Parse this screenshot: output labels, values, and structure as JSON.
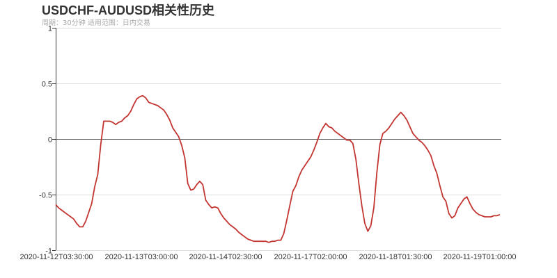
{
  "header": {
    "title": "USDCHF-AUDUSD相关性历史",
    "subtitle": "周期：30分钟 适用范围：日内交易"
  },
  "style": {
    "line_color": "#c23531",
    "grid_color": "#dddddd",
    "axis_color": "#333333",
    "zero_line_color": "#666666"
  },
  "chart_data": {
    "type": "line",
    "title": "USDCHF-AUDUSD相关性历史",
    "subtitle": "周期：30分钟 适用范围：日内交易",
    "xlabel": "",
    "ylabel": "",
    "ylim": [
      -1,
      1
    ],
    "yticks": [
      "1",
      "0.5",
      "0",
      "-0.5",
      "-1"
    ],
    "xticks": [
      "2020-11-12T03:30:00",
      "2020-11-13T03:00:00",
      "2020-11-14T02:30:00",
      "2020-11-17T02:00:00",
      "2020-11-18T01:30:00",
      "2020-11-19T01:00:00"
    ],
    "grid": true,
    "legend": null,
    "series": [
      {
        "name": "USDCHF-AUDUSD",
        "values": [
          -0.59,
          -0.62,
          -0.64,
          -0.66,
          -0.68,
          -0.7,
          -0.72,
          -0.76,
          -0.79,
          -0.79,
          -0.74,
          -0.66,
          -0.58,
          -0.43,
          -0.32,
          -0.05,
          0.16,
          0.16,
          0.16,
          0.15,
          0.13,
          0.15,
          0.16,
          0.19,
          0.21,
          0.25,
          0.31,
          0.36,
          0.38,
          0.39,
          0.37,
          0.33,
          0.32,
          0.31,
          0.3,
          0.28,
          0.26,
          0.22,
          0.17,
          0.1,
          0.06,
          0.02,
          -0.06,
          -0.17,
          -0.4,
          -0.46,
          -0.45,
          -0.41,
          -0.38,
          -0.41,
          -0.55,
          -0.59,
          -0.62,
          -0.61,
          -0.62,
          -0.67,
          -0.71,
          -0.74,
          -0.77,
          -0.79,
          -0.81,
          -0.84,
          -0.86,
          -0.88,
          -0.9,
          -0.91,
          -0.92,
          -0.92,
          -0.92,
          -0.92,
          -0.92,
          -0.93,
          -0.92,
          -0.92,
          -0.91,
          -0.91,
          -0.85,
          -0.73,
          -0.6,
          -0.47,
          -0.42,
          -0.34,
          -0.28,
          -0.24,
          -0.2,
          -0.16,
          -0.1,
          -0.03,
          0.05,
          0.1,
          0.14,
          0.11,
          0.1,
          0.07,
          0.05,
          0.03,
          0.01,
          -0.01,
          -0.01,
          -0.04,
          -0.18,
          -0.4,
          -0.6,
          -0.76,
          -0.83,
          -0.78,
          -0.62,
          -0.3,
          -0.05,
          0.05,
          0.07,
          0.1,
          0.14,
          0.18,
          0.21,
          0.24,
          0.21,
          0.17,
          0.11,
          0.05,
          0.02,
          -0.01,
          -0.03,
          -0.06,
          -0.1,
          -0.15,
          -0.24,
          -0.31,
          -0.42,
          -0.52,
          -0.56,
          -0.67,
          -0.71,
          -0.69,
          -0.62,
          -0.58,
          -0.54,
          -0.52,
          -0.58,
          -0.63,
          -0.66,
          -0.68,
          -0.69,
          -0.7,
          -0.7,
          -0.7,
          -0.69,
          -0.69,
          -0.68
        ]
      }
    ]
  }
}
